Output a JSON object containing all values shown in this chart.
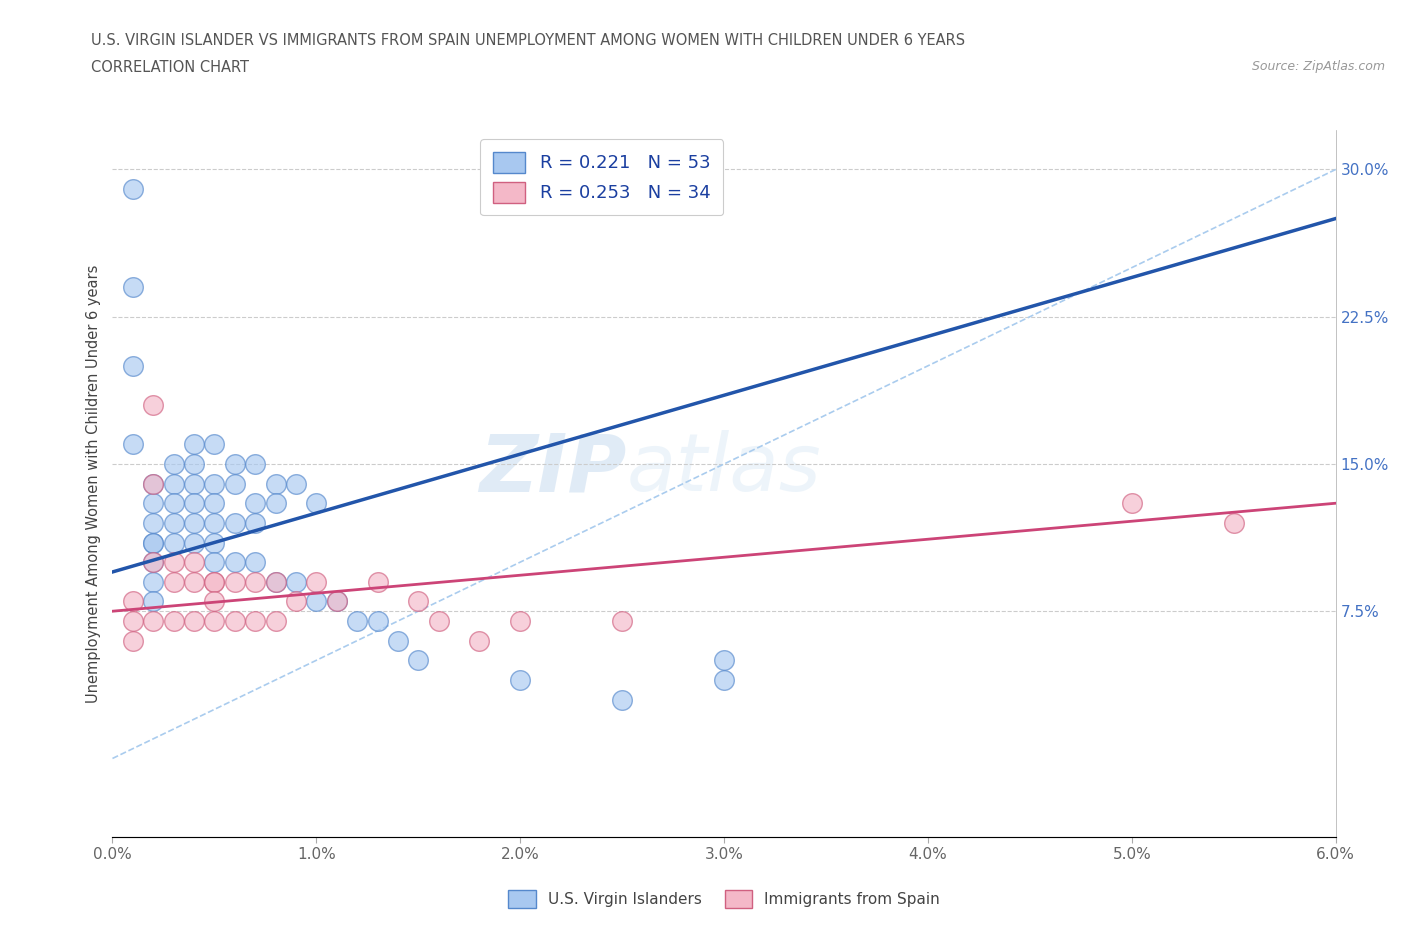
{
  "title_line1": "U.S. VIRGIN ISLANDER VS IMMIGRANTS FROM SPAIN UNEMPLOYMENT AMONG WOMEN WITH CHILDREN UNDER 6 YEARS",
  "title_line2": "CORRELATION CHART",
  "source": "Source: ZipAtlas.com",
  "ylabel": "Unemployment Among Women with Children Under 6 years",
  "xlim": [
    0.0,
    0.06
  ],
  "ylim": [
    -0.04,
    0.32
  ],
  "xticks": [
    0.0,
    0.01,
    0.02,
    0.03,
    0.04,
    0.05,
    0.06
  ],
  "xtick_labels": [
    "0.0%",
    "1.0%",
    "2.0%",
    "3.0%",
    "4.0%",
    "5.0%",
    "6.0%"
  ],
  "yticks_right": [
    0.075,
    0.15,
    0.225,
    0.3
  ],
  "ytick_labels_right": [
    "7.5%",
    "15.0%",
    "22.5%",
    "30.0%"
  ],
  "R_blue": 0.221,
  "N_blue": 53,
  "R_pink": 0.253,
  "N_pink": 34,
  "blue_color": "#A8C8F0",
  "blue_edge_color": "#5588CC",
  "blue_line_color": "#2255AA",
  "pink_color": "#F4B8C8",
  "pink_edge_color": "#D06080",
  "pink_line_color": "#CC4477",
  "dashed_line_color": "#AACCEE",
  "legend_label_blue": "U.S. Virgin Islanders",
  "legend_label_pink": "Immigrants from Spain",
  "watermark_zip": "ZIP",
  "watermark_atlas": "atlas",
  "blue_scatter_x": [
    0.001,
    0.001,
    0.001,
    0.001,
    0.002,
    0.002,
    0.002,
    0.002,
    0.002,
    0.002,
    0.002,
    0.002,
    0.003,
    0.003,
    0.003,
    0.003,
    0.003,
    0.004,
    0.004,
    0.004,
    0.004,
    0.004,
    0.004,
    0.005,
    0.005,
    0.005,
    0.005,
    0.005,
    0.005,
    0.006,
    0.006,
    0.006,
    0.006,
    0.007,
    0.007,
    0.007,
    0.007,
    0.008,
    0.008,
    0.008,
    0.009,
    0.009,
    0.01,
    0.01,
    0.011,
    0.012,
    0.013,
    0.014,
    0.015,
    0.02,
    0.025,
    0.03,
    0.03
  ],
  "blue_scatter_y": [
    0.29,
    0.24,
    0.2,
    0.16,
    0.14,
    0.13,
    0.12,
    0.11,
    0.11,
    0.1,
    0.09,
    0.08,
    0.15,
    0.14,
    0.13,
    0.12,
    0.11,
    0.16,
    0.15,
    0.14,
    0.13,
    0.12,
    0.11,
    0.16,
    0.14,
    0.13,
    0.12,
    0.11,
    0.1,
    0.15,
    0.14,
    0.12,
    0.1,
    0.15,
    0.13,
    0.12,
    0.1,
    0.14,
    0.13,
    0.09,
    0.14,
    0.09,
    0.13,
    0.08,
    0.08,
    0.07,
    0.07,
    0.06,
    0.05,
    0.04,
    0.03,
    0.04,
    0.05
  ],
  "pink_scatter_x": [
    0.001,
    0.001,
    0.001,
    0.002,
    0.002,
    0.002,
    0.002,
    0.003,
    0.003,
    0.003,
    0.004,
    0.004,
    0.004,
    0.005,
    0.005,
    0.005,
    0.005,
    0.006,
    0.006,
    0.007,
    0.007,
    0.008,
    0.008,
    0.009,
    0.01,
    0.011,
    0.013,
    0.015,
    0.016,
    0.018,
    0.02,
    0.025,
    0.05,
    0.055
  ],
  "pink_scatter_y": [
    0.08,
    0.07,
    0.06,
    0.18,
    0.14,
    0.1,
    0.07,
    0.1,
    0.09,
    0.07,
    0.1,
    0.09,
    0.07,
    0.09,
    0.09,
    0.08,
    0.07,
    0.09,
    0.07,
    0.09,
    0.07,
    0.09,
    0.07,
    0.08,
    0.09,
    0.08,
    0.09,
    0.08,
    0.07,
    0.06,
    0.07,
    0.07,
    0.13,
    0.12
  ]
}
